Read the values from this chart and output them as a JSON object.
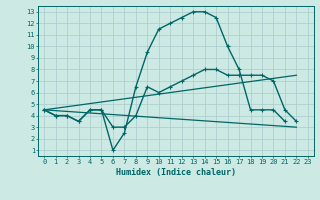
{
  "background_color": "#cce9e4",
  "grid_color": "#aacccc",
  "line_color": "#006666",
  "xlabel": "Humidex (Indice chaleur)",
  "xlim": [
    -0.5,
    23.5
  ],
  "ylim": [
    0.5,
    13.5
  ],
  "xticks": [
    0,
    1,
    2,
    3,
    4,
    5,
    6,
    7,
    8,
    9,
    10,
    11,
    12,
    13,
    14,
    15,
    16,
    17,
    18,
    19,
    20,
    21,
    22,
    23
  ],
  "yticks": [
    1,
    2,
    3,
    4,
    5,
    6,
    7,
    8,
    9,
    10,
    11,
    12,
    13
  ],
  "series": [
    {
      "x": [
        0,
        1,
        2,
        3,
        4,
        5,
        6,
        7,
        8,
        9,
        10,
        11,
        12,
        13,
        14,
        15,
        16,
        17,
        18,
        19,
        20,
        21
      ],
      "y": [
        4.5,
        4.0,
        4.0,
        3.5,
        4.5,
        4.5,
        1.0,
        2.5,
        6.5,
        9.5,
        11.5,
        12.0,
        12.5,
        13.0,
        13.0,
        12.5,
        10.0,
        8.0,
        4.5,
        4.5,
        4.5,
        3.5
      ],
      "marker": true,
      "linewidth": 1.0,
      "markersize": 2.5
    },
    {
      "x": [
        0,
        1,
        2,
        3,
        4,
        5,
        6,
        7,
        8,
        9,
        10,
        11,
        12,
        13,
        14,
        15,
        16,
        17,
        18,
        19,
        20,
        21,
        22
      ],
      "y": [
        4.5,
        4.0,
        4.0,
        3.5,
        4.5,
        4.5,
        3.0,
        3.0,
        4.0,
        6.5,
        6.0,
        6.5,
        7.0,
        7.5,
        8.0,
        8.0,
        7.5,
        7.5,
        7.5,
        7.5,
        7.0,
        4.5,
        3.5
      ],
      "marker": true,
      "linewidth": 1.0,
      "markersize": 2.5
    },
    {
      "x": [
        0,
        22
      ],
      "y": [
        4.5,
        7.5
      ],
      "marker": false,
      "linewidth": 0.9,
      "markersize": 0
    },
    {
      "x": [
        0,
        22
      ],
      "y": [
        4.5,
        3.0
      ],
      "marker": false,
      "linewidth": 0.9,
      "markersize": 0
    }
  ]
}
